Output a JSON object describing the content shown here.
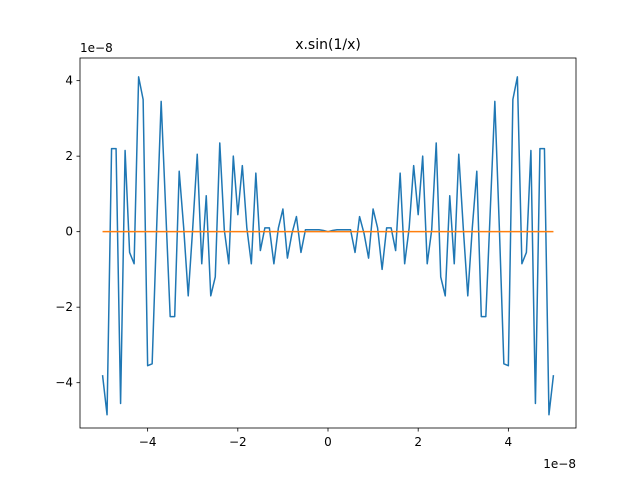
{
  "chart_data": {
    "type": "line",
    "title": "x.sin(1/x)",
    "xlabel": "",
    "ylabel": "",
    "x_offset_label": "1e−8",
    "y_offset_label": "1e−8",
    "xlim": [
      -5.5,
      5.5
    ],
    "ylim": [
      -5.2,
      4.6
    ],
    "x_ticks": [
      -4,
      -2,
      0,
      2,
      4
    ],
    "x_tick_labels": [
      "−4",
      "−2",
      "0",
      "2",
      "4"
    ],
    "y_ticks": [
      -4,
      -2,
      0,
      2,
      4
    ],
    "y_tick_labels": [
      "−4",
      "−2",
      "0",
      "2",
      "4"
    ],
    "grid": false,
    "series": [
      {
        "color": "#1f77b4",
        "points": [
          [
            -5.0,
            -3.8
          ],
          [
            -4.9,
            -4.85
          ],
          [
            -4.8,
            2.2
          ],
          [
            -4.7,
            2.2
          ],
          [
            -4.6,
            -4.55
          ],
          [
            -4.5,
            2.15
          ],
          [
            -4.4,
            -0.55
          ],
          [
            -4.3,
            -0.85
          ],
          [
            -4.2,
            4.1
          ],
          [
            -4.1,
            3.5
          ],
          [
            -4.0,
            -3.55
          ],
          [
            -3.9,
            -3.5
          ],
          [
            -3.8,
            0.1
          ],
          [
            -3.7,
            3.45
          ],
          [
            -3.6,
            0.6
          ],
          [
            -3.5,
            -2.25
          ],
          [
            -3.4,
            -2.25
          ],
          [
            -3.3,
            1.6
          ],
          [
            -3.2,
            0.1
          ],
          [
            -3.1,
            -1.7
          ],
          [
            -3.0,
            0.1
          ],
          [
            -2.9,
            2.05
          ],
          [
            -2.8,
            -0.85
          ],
          [
            -2.7,
            0.95
          ],
          [
            -2.6,
            -1.7
          ],
          [
            -2.5,
            -1.2
          ],
          [
            -2.4,
            2.35
          ],
          [
            -2.3,
            0.05
          ],
          [
            -2.2,
            -0.85
          ],
          [
            -2.1,
            2.0
          ],
          [
            -2.0,
            0.45
          ],
          [
            -1.9,
            1.75
          ],
          [
            -1.8,
            0.1
          ],
          [
            -1.7,
            -0.85
          ],
          [
            -1.6,
            1.55
          ],
          [
            -1.5,
            -0.5
          ],
          [
            -1.4,
            0.1
          ],
          [
            -1.3,
            0.1
          ],
          [
            -1.2,
            -0.85
          ],
          [
            -1.1,
            0.1
          ],
          [
            -1.0,
            0.6
          ],
          [
            -0.9,
            -0.7
          ],
          [
            -0.8,
            -0.05
          ],
          [
            -0.7,
            0.4
          ],
          [
            -0.6,
            -0.55
          ],
          [
            -0.5,
            0.05
          ],
          [
            -0.4,
            0.05
          ],
          [
            -0.3,
            0.05
          ],
          [
            -0.2,
            0.05
          ],
          [
            -0.1,
            0.03
          ],
          [
            0.0,
            0.0
          ],
          [
            0.1,
            0.03
          ],
          [
            0.2,
            0.05
          ],
          [
            0.3,
            0.05
          ],
          [
            0.4,
            0.05
          ],
          [
            0.5,
            0.05
          ],
          [
            0.6,
            -0.55
          ],
          [
            0.7,
            0.4
          ],
          [
            0.8,
            -0.05
          ],
          [
            0.9,
            -0.7
          ],
          [
            1.0,
            0.6
          ],
          [
            1.1,
            0.1
          ],
          [
            1.2,
            -1.0
          ],
          [
            1.3,
            0.1
          ],
          [
            1.4,
            0.1
          ],
          [
            1.5,
            -0.5
          ],
          [
            1.6,
            1.55
          ],
          [
            1.7,
            -0.85
          ],
          [
            1.8,
            0.1
          ],
          [
            1.9,
            1.75
          ],
          [
            2.0,
            0.45
          ],
          [
            2.1,
            2.0
          ],
          [
            2.2,
            -0.85
          ],
          [
            2.3,
            0.05
          ],
          [
            2.4,
            2.35
          ],
          [
            2.5,
            -1.2
          ],
          [
            2.6,
            -1.7
          ],
          [
            2.7,
            0.95
          ],
          [
            2.8,
            -0.85
          ],
          [
            2.9,
            2.05
          ],
          [
            3.0,
            0.1
          ],
          [
            3.1,
            -1.7
          ],
          [
            3.2,
            0.1
          ],
          [
            3.3,
            1.6
          ],
          [
            3.4,
            -2.25
          ],
          [
            3.5,
            -2.25
          ],
          [
            3.6,
            0.6
          ],
          [
            3.7,
            3.45
          ],
          [
            3.8,
            0.1
          ],
          [
            3.9,
            -3.5
          ],
          [
            4.0,
            -3.55
          ],
          [
            4.1,
            3.5
          ],
          [
            4.2,
            4.1
          ],
          [
            4.3,
            -0.85
          ],
          [
            4.4,
            -0.55
          ],
          [
            4.5,
            2.15
          ],
          [
            4.6,
            -4.55
          ],
          [
            4.7,
            2.2
          ],
          [
            4.8,
            2.2
          ],
          [
            4.9,
            -4.85
          ],
          [
            5.0,
            -3.8
          ]
        ]
      },
      {
        "color": "#ff7f0e",
        "points": [
          [
            -5.0,
            0.0
          ],
          [
            5.0,
            0.0
          ]
        ]
      }
    ]
  }
}
